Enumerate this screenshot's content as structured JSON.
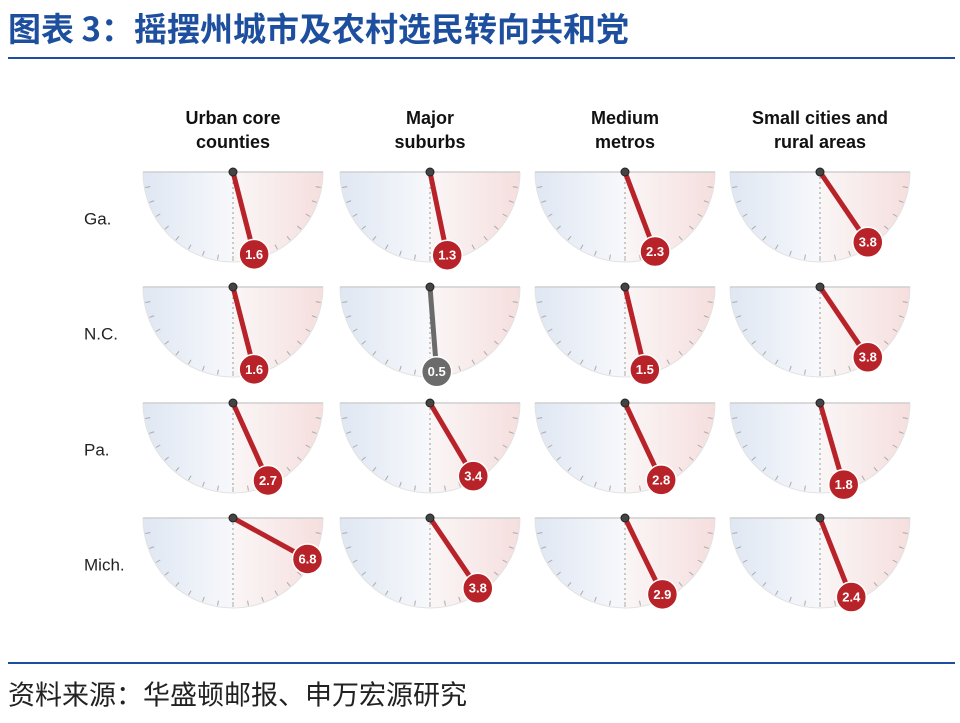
{
  "header": {
    "title": "图表 3：摇摆州城市及农村选民转向共和党"
  },
  "chart_data": {
    "type": "gauge",
    "columns": [
      [
        "Urban core",
        "counties"
      ],
      [
        "Major",
        "suburbs"
      ],
      [
        "Medium",
        "metros"
      ],
      [
        "Small cities and",
        "rural areas"
      ]
    ],
    "series": [
      {
        "name": "Ga.",
        "values": [
          1.6,
          1.3,
          2.3,
          3.8
        ],
        "colors": [
          "#b8232a",
          "#b8232a",
          "#b8232a",
          "#b8232a"
        ]
      },
      {
        "name": "N.C.",
        "values": [
          1.6,
          0.5,
          1.5,
          3.8
        ],
        "colors": [
          "#b8232a",
          "#6b6b6b",
          "#b8232a",
          "#b8232a"
        ]
      },
      {
        "name": "Pa.",
        "values": [
          2.7,
          3.4,
          2.8,
          1.8
        ],
        "colors": [
          "#b8232a",
          "#b8232a",
          "#b8232a",
          "#b8232a"
        ]
      },
      {
        "name": "Mich.",
        "values": [
          6.8,
          3.8,
          2.9,
          2.4
        ],
        "colors": [
          "#b8232a",
          "#b8232a",
          "#b8232a",
          "#b8232a"
        ]
      }
    ]
  },
  "footer": {
    "source": "资料来源：华盛顿邮报、申万宏源研究"
  }
}
